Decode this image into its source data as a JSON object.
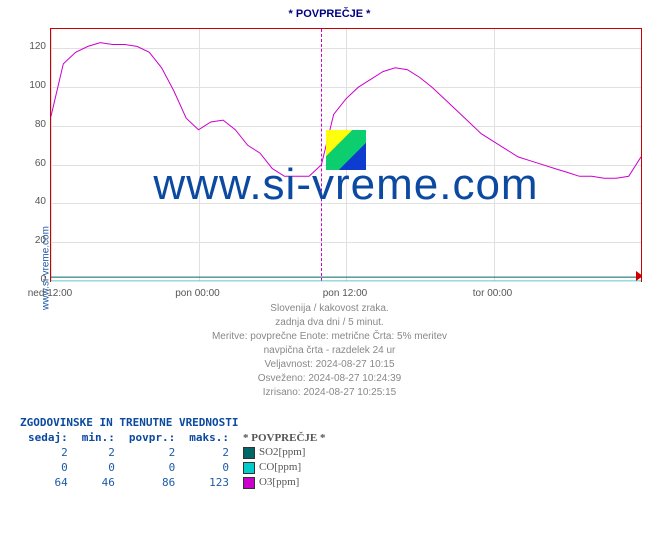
{
  "title": "* POVPREČJE *",
  "site_label": "www.si-vreme.com",
  "watermark": "www.si-vreme.com",
  "chart": {
    "type": "line",
    "ylim": [
      0,
      130
    ],
    "yticks": [
      0,
      20,
      40,
      60,
      80,
      100,
      120
    ],
    "xlim_hours": [
      0,
      48
    ],
    "xticks": [
      {
        "h": 0,
        "label": "ned 12:00"
      },
      {
        "h": 12,
        "label": "pon 00:00"
      },
      {
        "h": 24,
        "label": "pon 12:00"
      },
      {
        "h": 36,
        "label": "tor 00:00"
      }
    ],
    "divider_hour": 22,
    "grid_color": "#e0e0e0",
    "axis_color": "#cc0000",
    "colors": {
      "SO2": "#006666",
      "CO": "#00cccc",
      "O3": "#cc00cc"
    },
    "series": {
      "SO2": [
        2,
        2,
        2,
        2,
        2,
        2,
        2,
        2,
        2,
        2,
        2,
        2,
        2,
        2,
        2,
        2,
        2,
        2,
        2,
        2,
        2,
        2,
        2,
        2,
        2,
        2,
        2,
        2,
        2,
        2,
        2,
        2,
        2,
        2,
        2,
        2,
        2,
        2,
        2,
        2,
        2,
        2,
        2,
        2,
        2,
        2,
        2,
        2,
        2
      ],
      "CO": [
        0,
        0,
        0,
        0,
        0,
        0,
        0,
        0,
        0,
        0,
        0,
        0,
        0,
        0,
        0,
        0,
        0,
        0,
        0,
        0,
        0,
        0,
        0,
        0,
        0,
        0,
        0,
        0,
        0,
        0,
        0,
        0,
        0,
        0,
        0,
        0,
        0,
        0,
        0,
        0,
        0,
        0,
        0,
        0,
        0,
        0,
        0,
        0,
        0
      ],
      "O3": [
        85,
        112,
        118,
        121,
        123,
        122,
        122,
        121,
        118,
        110,
        98,
        84,
        78,
        82,
        83,
        78,
        70,
        66,
        58,
        54,
        54,
        54,
        60,
        86,
        94,
        100,
        104,
        108,
        110,
        109,
        105,
        100,
        94,
        88,
        82,
        76,
        72,
        68,
        64,
        62,
        60,
        58,
        56,
        54,
        54,
        53,
        53,
        54,
        64
      ]
    }
  },
  "meta_lines": [
    "Slovenija / kakovost zraka.",
    "zadnja dva dni / 5 minut.",
    "Meritve: povprečne  Enote: metrične  Črta: 5% meritev",
    "navpična črta - razdelek 24 ur",
    "Veljavnost: 2024-08-27 10:15",
    "Osveženo: 2024-08-27 10:24:39",
    "Izrisano: 2024-08-27 10:25:15"
  ],
  "table": {
    "header": "ZGODOVINSKE IN TRENUTNE VREDNOSTI",
    "cols": [
      "sedaj:",
      "min.:",
      "povpr.:",
      "maks.:"
    ],
    "legend_title": "* POVPREČJE *",
    "rows": [
      {
        "sedaj": 2,
        "min": 2,
        "povpr": 2,
        "maks": 2,
        "label": "SO2[ppm]",
        "color": "#006666"
      },
      {
        "sedaj": 0,
        "min": 0,
        "povpr": 0,
        "maks": 0,
        "label": "CO[ppm]",
        "color": "#00cccc"
      },
      {
        "sedaj": 64,
        "min": 46,
        "povpr": 86,
        "maks": 123,
        "label": "O3[ppm]",
        "color": "#cc00cc"
      }
    ]
  }
}
